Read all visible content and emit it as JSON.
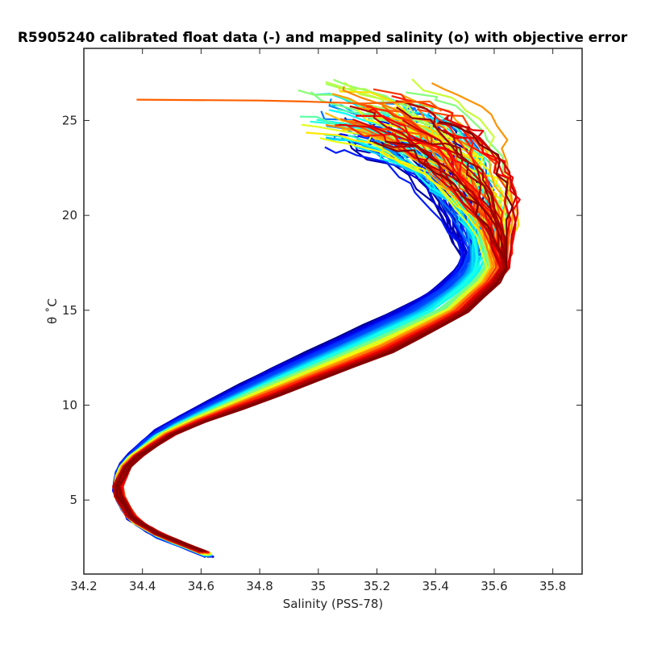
{
  "chart_data": {
    "type": "line",
    "title": "R5905240 calibrated float data (-) and mapped salinity (o) with objective error",
    "xlabel": "Salinity (PSS-78)",
    "ylabel": "θ ˚C",
    "xlim": [
      34.2,
      35.9
    ],
    "ylim": [
      1.1,
      28.8
    ],
    "x_ticks": [
      "34.2",
      "34.4",
      "34.6",
      "34.8",
      "35",
      "35.2",
      "35.4",
      "35.6",
      "35.8"
    ],
    "y_ticks": [
      "5",
      "10",
      "15",
      "20",
      "25"
    ],
    "grid": false,
    "legend": "none",
    "colormap": "jet",
    "profile_count": 120,
    "representative_profiles": [
      {
        "series": "early",
        "color": "#00008f",
        "x": [
          34.63,
          34.46,
          34.36,
          34.31,
          34.33,
          34.45,
          34.78,
          35.12,
          35.35,
          35.5,
          35.48,
          35.42,
          35.3,
          35.25
        ],
        "y": [
          2.0,
          3.0,
          4.0,
          5.5,
          7.0,
          8.8,
          11.5,
          14.0,
          15.6,
          17.5,
          19.6,
          22.0,
          23.6,
          24.0
        ]
      },
      {
        "series": "mid",
        "color": "#ffff00",
        "x": [
          34.62,
          34.46,
          34.36,
          34.31,
          34.34,
          34.49,
          34.83,
          35.2,
          35.43,
          35.58,
          35.6,
          35.55,
          35.45,
          35.32,
          35.12
        ],
        "y": [
          2.1,
          3.1,
          4.0,
          5.5,
          7.0,
          8.7,
          11.0,
          13.4,
          15.0,
          17.0,
          19.5,
          21.5,
          23.5,
          25.0,
          25.8
        ]
      },
      {
        "series": "late",
        "color": "#800000",
        "x": [
          34.61,
          34.46,
          34.37,
          34.31,
          34.36,
          34.52,
          34.88,
          35.25,
          35.5,
          35.65,
          35.62,
          35.56,
          35.5,
          35.42,
          35.3
        ],
        "y": [
          2.3,
          3.2,
          4.0,
          5.5,
          7.0,
          8.6,
          10.6,
          12.8,
          14.8,
          17.0,
          19.5,
          21.5,
          23.0,
          24.2,
          25.0
        ]
      }
    ],
    "outlier_profile": {
      "color": "#ff6000",
      "x": [
        35.42,
        35.38,
        35.15,
        34.95,
        34.8,
        34.38
      ],
      "y": [
        25.5,
        26.0,
        25.9,
        26.0,
        26.05,
        26.1
      ]
    }
  }
}
